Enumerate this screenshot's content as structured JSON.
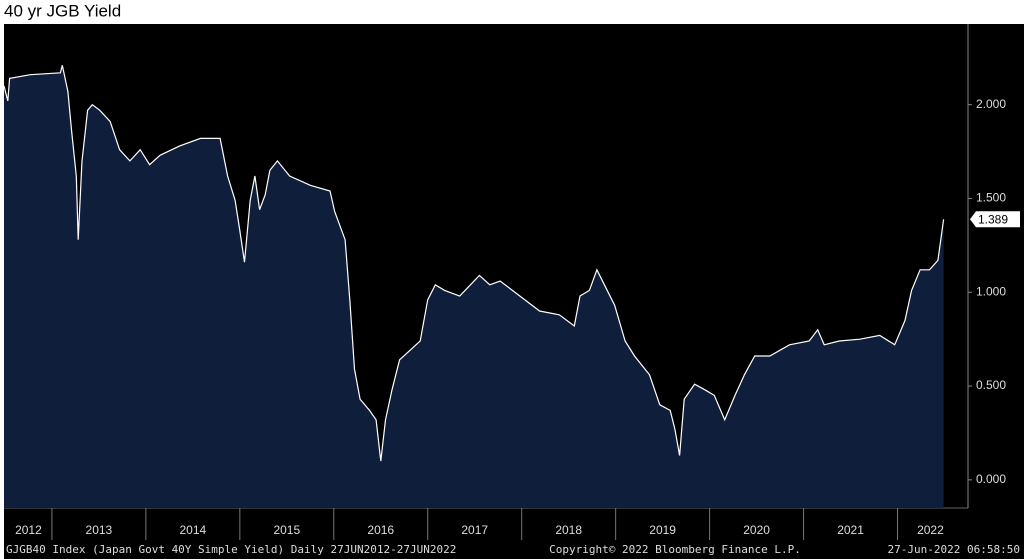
{
  "chart_data": {
    "type": "area",
    "title": "40 yr JGB Yield",
    "source": "GJGB40 Index (Japan Govt 40Y Simple Yield)  Daily 27JUN2012-27JUN2022",
    "copyright": "Copyright© 2022 Bloomberg Finance L.P.",
    "timestamp": "27-Jun-2022 06:58:50",
    "x": [
      2012.49,
      2012.53,
      2012.55,
      2012.77,
      2013.09,
      2013.11,
      2013.17,
      2013.21,
      2013.26,
      2013.28,
      2013.32,
      2013.38,
      2013.43,
      2013.51,
      2013.62,
      2013.72,
      2013.83,
      2013.94,
      2014.04,
      2014.15,
      2014.36,
      2014.58,
      2014.79,
      2014.87,
      2014.95,
      2015.0,
      2015.05,
      2015.11,
      2015.16,
      2015.21,
      2015.27,
      2015.32,
      2015.4,
      2015.53,
      2015.75,
      2015.96,
      2016.01,
      2016.12,
      2016.17,
      2016.22,
      2016.28,
      2016.38,
      2016.45,
      2016.5,
      2016.55,
      2016.62,
      2016.7,
      2016.81,
      2016.92,
      2017.0,
      2017.08,
      2017.18,
      2017.34,
      2017.55,
      2017.66,
      2017.77,
      2017.98,
      2018.19,
      2018.4,
      2018.56,
      2018.62,
      2018.72,
      2018.8,
      2018.88,
      2018.99,
      2019.1,
      2019.2,
      2019.36,
      2019.47,
      2019.58,
      2019.63,
      2019.68,
      2019.73,
      2019.84,
      2019.95,
      2020.05,
      2020.16,
      2020.27,
      2020.37,
      2020.48,
      2020.64,
      2020.85,
      2021.06,
      2021.15,
      2021.22,
      2021.38,
      2021.6,
      2021.81,
      2021.97,
      2022.08,
      2022.15,
      2022.24,
      2022.34,
      2022.43,
      2022.49
    ],
    "series": [
      {
        "color": "#ffffff",
        "fill": "#0f1f3b",
        "values": [
          2.1,
          2.02,
          2.14,
          2.16,
          2.17,
          2.21,
          2.07,
          1.86,
          1.62,
          1.28,
          1.7,
          1.97,
          2.0,
          1.97,
          1.91,
          1.76,
          1.7,
          1.76,
          1.68,
          1.73,
          1.78,
          1.82,
          1.82,
          1.62,
          1.49,
          1.33,
          1.16,
          1.49,
          1.62,
          1.44,
          1.52,
          1.65,
          1.7,
          1.62,
          1.57,
          1.54,
          1.43,
          1.28,
          0.96,
          0.59,
          0.43,
          0.37,
          0.32,
          0.1,
          0.32,
          0.48,
          0.64,
          0.69,
          0.74,
          0.96,
          1.04,
          1.01,
          0.98,
          1.09,
          1.04,
          1.06,
          0.98,
          0.9,
          0.88,
          0.82,
          0.98,
          1.01,
          1.12,
          1.04,
          0.93,
          0.74,
          0.66,
          0.56,
          0.4,
          0.37,
          0.27,
          0.13,
          0.43,
          0.51,
          0.48,
          0.45,
          0.32,
          0.45,
          0.56,
          0.66,
          0.66,
          0.72,
          0.74,
          0.8,
          0.72,
          0.74,
          0.75,
          0.77,
          0.72,
          0.85,
          1.01,
          1.12,
          1.12,
          1.17,
          1.389
        ]
      }
    ],
    "xlim": [
      2012.49,
      2022.75
    ],
    "xticks": [
      {
        "value": 2012.75,
        "label": "2012"
      },
      {
        "value": 2013.5,
        "label": "2013"
      },
      {
        "value": 2014.5,
        "label": "2014"
      },
      {
        "value": 2015.5,
        "label": "2015"
      },
      {
        "value": 2016.5,
        "label": "2016"
      },
      {
        "value": 2017.5,
        "label": "2017"
      },
      {
        "value": 2018.5,
        "label": "2018"
      },
      {
        "value": 2019.5,
        "label": "2019"
      },
      {
        "value": 2020.5,
        "label": "2020"
      },
      {
        "value": 2021.5,
        "label": "2021"
      },
      {
        "value": 2022.35,
        "label": "2022"
      }
    ],
    "ylim": [
      -0.15,
      2.43
    ],
    "yticks": [
      {
        "value": 0,
        "label": "0.000"
      },
      {
        "value": 0.5,
        "label": "0.500"
      },
      {
        "value": 1,
        "label": "1.000"
      },
      {
        "value": 1.5,
        "label": "1.500"
      },
      {
        "value": 2,
        "label": "2.000"
      }
    ]
  }
}
